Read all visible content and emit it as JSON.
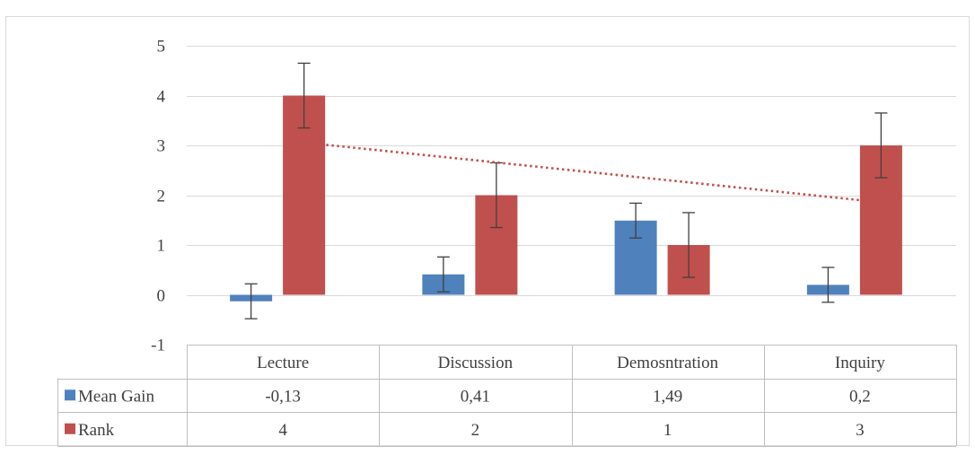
{
  "chart_data": {
    "type": "bar",
    "categories": [
      "Lecture",
      "Discussion",
      "Demosntration",
      "Inquiry"
    ],
    "series": [
      {
        "name": "Mean Gain",
        "color": "#4f81bd",
        "values": [
          -0.13,
          0.41,
          1.49,
          0.2
        ],
        "error": 0.35,
        "table_values": [
          "-0,13",
          "0,41",
          "1,49",
          "0,2"
        ]
      },
      {
        "name": "Rank",
        "color": "#c0504d",
        "values": [
          4,
          2,
          1,
          3
        ],
        "error": 0.65,
        "table_values": [
          "4",
          "2",
          "1",
          "3"
        ]
      }
    ],
    "trendline": {
      "series": "Rank",
      "type": "linear",
      "style": "dotted",
      "color": "#c0504d",
      "start": 3.1,
      "end": 1.9
    },
    "ylim": [
      -1,
      5
    ],
    "yticks": [
      -1,
      0,
      1,
      2,
      3,
      4,
      5
    ],
    "grid": true,
    "legend": "data-table",
    "data_table": true
  }
}
